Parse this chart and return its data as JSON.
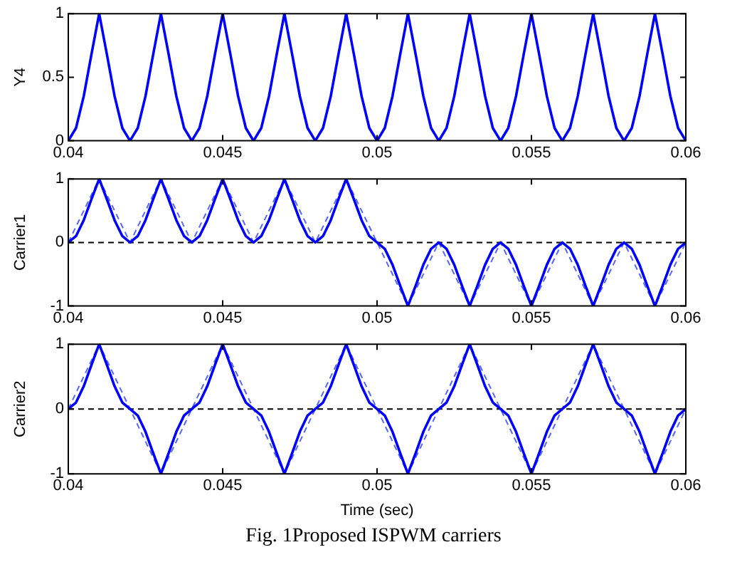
{
  "chart_data": [
    {
      "type": "line",
      "ylabel": "Y4",
      "xlim": [
        0.04,
        0.06
      ],
      "xticks": [
        0.04,
        0.045,
        0.05,
        0.055,
        0.06
      ],
      "ylim": [
        0,
        1
      ],
      "yticks": [
        0,
        0.5,
        1
      ],
      "grid": false,
      "x": [
        0.04,
        0.04025,
        0.0405,
        0.04075,
        0.041,
        0.04125,
        0.0415,
        0.04175,
        0.042,
        0.04225,
        0.0425,
        0.04275,
        0.043,
        0.04325,
        0.0435,
        0.04375,
        0.044,
        0.04425,
        0.0445,
        0.04475,
        0.045,
        0.04525,
        0.0455,
        0.04575,
        0.046,
        0.04625,
        0.0465,
        0.04675,
        0.047,
        0.04725,
        0.0475,
        0.04775,
        0.048,
        0.04825,
        0.0485,
        0.04875,
        0.049,
        0.04925,
        0.0495,
        0.04975,
        0.05,
        0.05025,
        0.0505,
        0.05075,
        0.051,
        0.05125,
        0.0515,
        0.05175,
        0.052,
        0.05225,
        0.0525,
        0.05275,
        0.053,
        0.05325,
        0.0535,
        0.05375,
        0.054,
        0.05425,
        0.0545,
        0.05475,
        0.055,
        0.05525,
        0.0555,
        0.05575,
        0.056,
        0.05625,
        0.0565,
        0.05675,
        0.057,
        0.05725,
        0.0575,
        0.05775,
        0.058,
        0.05825,
        0.0585,
        0.05875,
        0.059,
        0.05925,
        0.0595,
        0.05975,
        0.06
      ],
      "series": [
        {
          "color": "#0000ff",
          "line_style": "solid",
          "values": [
            0,
            0.1,
            0.35,
            0.68,
            1,
            0.68,
            0.35,
            0.1,
            0,
            0.1,
            0.35,
            0.68,
            1,
            0.68,
            0.35,
            0.1,
            0,
            0.1,
            0.35,
            0.68,
            1,
            0.68,
            0.35,
            0.1,
            0,
            0.1,
            0.35,
            0.68,
            1,
            0.68,
            0.35,
            0.1,
            0,
            0.1,
            0.35,
            0.68,
            1,
            0.68,
            0.35,
            0.1,
            0,
            0.1,
            0.35,
            0.68,
            1,
            0.68,
            0.35,
            0.1,
            0,
            0.1,
            0.35,
            0.68,
            1,
            0.68,
            0.35,
            0.1,
            0,
            0.1,
            0.35,
            0.68,
            1,
            0.68,
            0.35,
            0.1,
            0,
            0.1,
            0.35,
            0.68,
            1,
            0.68,
            0.35,
            0.1,
            0,
            0.1,
            0.35,
            0.68,
            1,
            0.68,
            0.35,
            0.1,
            0
          ]
        }
      ]
    },
    {
      "type": "line",
      "ylabel": "Carrier1",
      "xlim": [
        0.04,
        0.06
      ],
      "xticks": [
        0.04,
        0.045,
        0.05,
        0.055,
        0.06
      ],
      "ylim": [
        -1,
        1
      ],
      "yticks": [
        -1,
        0,
        1
      ],
      "grid": false,
      "x": [
        0.04,
        0.04025,
        0.0405,
        0.04075,
        0.041,
        0.04125,
        0.0415,
        0.04175,
        0.042,
        0.04225,
        0.0425,
        0.04275,
        0.043,
        0.04325,
        0.0435,
        0.04375,
        0.044,
        0.04425,
        0.0445,
        0.04475,
        0.045,
        0.04525,
        0.0455,
        0.04575,
        0.046,
        0.04625,
        0.0465,
        0.04675,
        0.047,
        0.04725,
        0.0475,
        0.04775,
        0.048,
        0.04825,
        0.0485,
        0.04875,
        0.049,
        0.04925,
        0.0495,
        0.04975,
        0.05,
        0.05025,
        0.0505,
        0.05075,
        0.051,
        0.05125,
        0.0515,
        0.05175,
        0.052,
        0.05225,
        0.0525,
        0.05275,
        0.053,
        0.05325,
        0.0535,
        0.05375,
        0.054,
        0.05425,
        0.0545,
        0.05475,
        0.055,
        0.05525,
        0.0555,
        0.05575,
        0.056,
        0.05625,
        0.0565,
        0.05675,
        0.057,
        0.05725,
        0.0575,
        0.05775,
        0.058,
        0.05825,
        0.0585,
        0.05875,
        0.059,
        0.05925,
        0.0595,
        0.05975,
        0.06
      ],
      "ref_lines": [
        {
          "axis": "y",
          "value": 0,
          "color": "#000000",
          "line_style": "dashed"
        }
      ],
      "series": [
        {
          "color": "#0000ff",
          "line_style": "solid",
          "values": [
            0,
            0.1,
            0.35,
            0.68,
            1,
            0.68,
            0.35,
            0.1,
            0,
            0.1,
            0.35,
            0.68,
            1,
            0.68,
            0.35,
            0.1,
            0,
            0.1,
            0.35,
            0.68,
            1,
            0.68,
            0.35,
            0.1,
            0,
            0.1,
            0.35,
            0.68,
            1,
            0.68,
            0.35,
            0.1,
            0,
            0.1,
            0.35,
            0.68,
            1,
            0.68,
            0.35,
            0.1,
            0,
            -0.1,
            -0.35,
            -0.68,
            -1,
            -0.68,
            -0.35,
            -0.1,
            0,
            -0.1,
            -0.35,
            -0.68,
            -1,
            -0.68,
            -0.35,
            -0.1,
            0,
            -0.1,
            -0.35,
            -0.68,
            -1,
            -0.68,
            -0.35,
            -0.1,
            0,
            -0.1,
            -0.35,
            -0.68,
            -1,
            -0.68,
            -0.35,
            -0.1,
            0,
            -0.1,
            -0.35,
            -0.68,
            -1,
            -0.68,
            -0.35,
            -0.1,
            0
          ]
        },
        {
          "color": "#5566ff",
          "line_style": "dashed",
          "x": [
            0.04,
            0.041,
            0.042,
            0.043,
            0.044,
            0.045,
            0.046,
            0.047,
            0.048,
            0.049,
            0.05,
            0.051,
            0.052,
            0.053,
            0.054,
            0.055,
            0.056,
            0.057,
            0.058,
            0.059,
            0.06
          ],
          "values": [
            0,
            1,
            0,
            1,
            0,
            1,
            0,
            1,
            0,
            1,
            0,
            -1,
            0,
            -1,
            0,
            -1,
            0,
            -1,
            0,
            -1,
            0
          ]
        }
      ]
    },
    {
      "type": "line",
      "ylabel": "Carrier2",
      "xlabel": "Time (sec)",
      "xlim": [
        0.04,
        0.06
      ],
      "xticks": [
        0.04,
        0.045,
        0.05,
        0.055,
        0.06
      ],
      "ylim": [
        -1,
        1
      ],
      "yticks": [
        -1,
        0,
        1
      ],
      "grid": false,
      "x": [
        0.04,
        0.04025,
        0.0405,
        0.04075,
        0.041,
        0.04125,
        0.0415,
        0.04175,
        0.042,
        0.04225,
        0.0425,
        0.04275,
        0.043,
        0.04325,
        0.0435,
        0.04375,
        0.044,
        0.04425,
        0.0445,
        0.04475,
        0.045,
        0.04525,
        0.0455,
        0.04575,
        0.046,
        0.04625,
        0.0465,
        0.04675,
        0.047,
        0.04725,
        0.0475,
        0.04775,
        0.048,
        0.04825,
        0.0485,
        0.04875,
        0.049,
        0.04925,
        0.0495,
        0.04975,
        0.05,
        0.05025,
        0.0505,
        0.05075,
        0.051,
        0.05125,
        0.0515,
        0.05175,
        0.052,
        0.05225,
        0.0525,
        0.05275,
        0.053,
        0.05325,
        0.0535,
        0.05375,
        0.054,
        0.05425,
        0.0545,
        0.05475,
        0.055,
        0.05525,
        0.0555,
        0.05575,
        0.056,
        0.05625,
        0.0565,
        0.05675,
        0.057,
        0.05725,
        0.0575,
        0.05775,
        0.058,
        0.05825,
        0.0585,
        0.05875,
        0.059,
        0.05925,
        0.0595,
        0.05975,
        0.06
      ],
      "ref_lines": [
        {
          "axis": "y",
          "value": 0,
          "color": "#000000",
          "line_style": "dashed"
        }
      ],
      "annotations": [
        "Fig. 1Proposed ISPWM carriers"
      ],
      "series": [
        {
          "color": "#0000ff",
          "line_style": "solid",
          "values": [
            0,
            0.1,
            0.35,
            0.68,
            1,
            0.68,
            0.35,
            0.1,
            0,
            -0.1,
            -0.35,
            -0.68,
            -1,
            -0.68,
            -0.35,
            -0.1,
            0,
            0.1,
            0.35,
            0.68,
            1,
            0.68,
            0.35,
            0.1,
            0,
            -0.1,
            -0.35,
            -0.68,
            -1,
            -0.68,
            -0.35,
            -0.1,
            0,
            0.1,
            0.35,
            0.68,
            1,
            0.68,
            0.35,
            0.1,
            0,
            -0.1,
            -0.35,
            -0.68,
            -1,
            -0.68,
            -0.35,
            -0.1,
            0,
            0.1,
            0.35,
            0.68,
            1,
            0.68,
            0.35,
            0.1,
            0,
            -0.1,
            -0.35,
            -0.68,
            -1,
            -0.68,
            -0.35,
            -0.1,
            0,
            0.1,
            0.35,
            0.68,
            1,
            0.68,
            0.35,
            0.1,
            0,
            -0.1,
            -0.35,
            -0.68,
            -1,
            -0.68,
            -0.35,
            -0.1,
            0
          ]
        },
        {
          "color": "#5566ff",
          "line_style": "dashed",
          "x": [
            0.04,
            0.041,
            0.042,
            0.043,
            0.044,
            0.045,
            0.046,
            0.047,
            0.048,
            0.049,
            0.05,
            0.051,
            0.052,
            0.053,
            0.054,
            0.055,
            0.056,
            0.057,
            0.058,
            0.059,
            0.06
          ],
          "values": [
            0,
            1,
            0,
            -1,
            0,
            1,
            0,
            -1,
            0,
            1,
            0,
            -1,
            0,
            1,
            0,
            -1,
            0,
            1,
            0,
            -1,
            0
          ]
        }
      ]
    }
  ]
}
